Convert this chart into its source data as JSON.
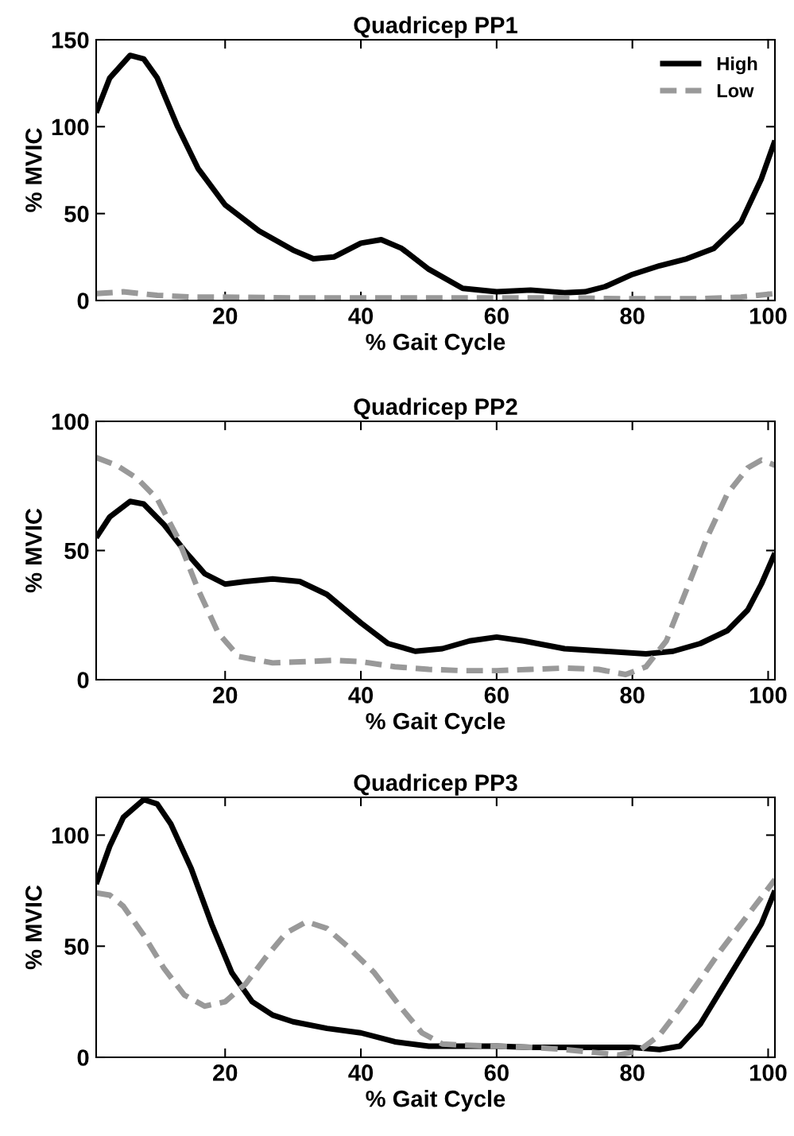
{
  "chart_data": [
    {
      "type": "line",
      "title": "Quadricep PP1",
      "xlabel": "% Gait Cycle",
      "ylabel": "% MVIC",
      "xlim": [
        1,
        101
      ],
      "ylim": [
        0,
        150
      ],
      "xticks": [
        20,
        40,
        60,
        80,
        100
      ],
      "yticks": [
        0,
        50,
        100,
        150
      ],
      "grid": false,
      "legend": "top right",
      "series": [
        {
          "name": "High",
          "color": "#000000",
          "line_style": "solid",
          "x": [
            1,
            3,
            6,
            8,
            10,
            13,
            16,
            20,
            25,
            30,
            33,
            36,
            40,
            43,
            46,
            50,
            55,
            60,
            65,
            70,
            73,
            76,
            80,
            84,
            88,
            92,
            96,
            99,
            101
          ],
          "values": [
            108,
            128,
            141,
            139,
            128,
            100,
            76,
            55,
            40,
            29,
            24,
            25,
            33,
            35,
            30,
            18,
            7,
            5,
            6,
            4.5,
            5,
            8,
            15,
            20,
            24,
            30,
            45,
            70,
            92
          ]
        },
        {
          "name": "Low",
          "color": "#999999",
          "line_style": "dashed",
          "x": [
            1,
            5,
            10,
            15,
            20,
            30,
            40,
            50,
            60,
            70,
            80,
            90,
            96,
            101
          ],
          "values": [
            4,
            5,
            3,
            2,
            2,
            1.5,
            1.5,
            1.5,
            1.5,
            1.5,
            1,
            1,
            2,
            4
          ]
        }
      ]
    },
    {
      "type": "line",
      "title": "Quadricep PP2",
      "xlabel": "% Gait Cycle",
      "ylabel": "% MVIC",
      "xlim": [
        1,
        101
      ],
      "ylim": [
        0,
        100
      ],
      "xticks": [
        20,
        40,
        60,
        80,
        100
      ],
      "yticks": [
        0,
        50,
        100
      ],
      "grid": false,
      "legend": false,
      "series": [
        {
          "color": "#000000",
          "line_style": "solid",
          "x": [
            1,
            3,
            6,
            8,
            11,
            14,
            17,
            20,
            23,
            27,
            31,
            35,
            40,
            44,
            48,
            52,
            56,
            60,
            64,
            70,
            76,
            82,
            86,
            90,
            94,
            97,
            99,
            101
          ],
          "values": [
            55,
            63,
            69,
            68,
            60,
            50,
            41,
            37,
            38,
            39,
            38,
            33,
            22,
            14,
            11,
            12,
            15,
            16.5,
            15,
            12,
            11,
            10,
            11,
            14,
            19,
            27,
            37,
            49
          ]
        },
        {
          "color": "#999999",
          "line_style": "dashed",
          "x": [
            1,
            4,
            7,
            10,
            13,
            16,
            19,
            22,
            27,
            32,
            36,
            40,
            45,
            50,
            55,
            60,
            65,
            70,
            75,
            79,
            82,
            85,
            88,
            91,
            94,
            97,
            99,
            101
          ],
          "values": [
            86,
            83,
            78,
            70,
            55,
            35,
            18,
            9,
            6.5,
            7,
            7.5,
            7,
            5,
            4,
            3.5,
            3.5,
            4,
            4.5,
            4,
            2,
            5,
            15,
            35,
            55,
            72,
            82,
            85,
            83
          ]
        }
      ]
    },
    {
      "type": "line",
      "title": "Quadricep PP3",
      "xlabel": "% Gait Cycle",
      "ylabel": "% MVIC",
      "xlim": [
        1,
        101
      ],
      "ylim": [
        0,
        117
      ],
      "xticks": [
        20,
        40,
        60,
        80,
        100
      ],
      "yticks": [
        0,
        50,
        100
      ],
      "grid": false,
      "legend": false,
      "series": [
        {
          "color": "#000000",
          "line_style": "solid",
          "x": [
            1,
            3,
            5,
            8,
            10,
            12,
            15,
            18,
            21,
            24,
            27,
            30,
            35,
            40,
            45,
            50,
            55,
            60,
            65,
            70,
            75,
            80,
            84,
            87,
            90,
            93,
            96,
            99,
            101
          ],
          "values": [
            78,
            95,
            108,
            116,
            114,
            105,
            85,
            60,
            38,
            25,
            19,
            16,
            13,
            11,
            7,
            5,
            5,
            5,
            4.5,
            4.5,
            4.5,
            4.5,
            3.5,
            5,
            15,
            30,
            45,
            60,
            75
          ]
        },
        {
          "color": "#999999",
          "line_style": "dashed",
          "x": [
            1,
            3,
            5,
            8,
            11,
            14,
            17,
            20,
            23,
            26,
            29,
            32,
            35,
            38,
            42,
            46,
            49,
            52,
            55,
            60,
            65,
            70,
            75,
            78,
            81,
            84,
            87,
            90,
            93,
            96,
            99,
            101
          ],
          "values": [
            74,
            73,
            68,
            55,
            40,
            28,
            23,
            25,
            33,
            45,
            56,
            61,
            58,
            50,
            38,
            22,
            11,
            6,
            5.5,
            5,
            4.5,
            3.5,
            2,
            1,
            3,
            10,
            22,
            35,
            48,
            60,
            72,
            80
          ]
        }
      ]
    }
  ]
}
